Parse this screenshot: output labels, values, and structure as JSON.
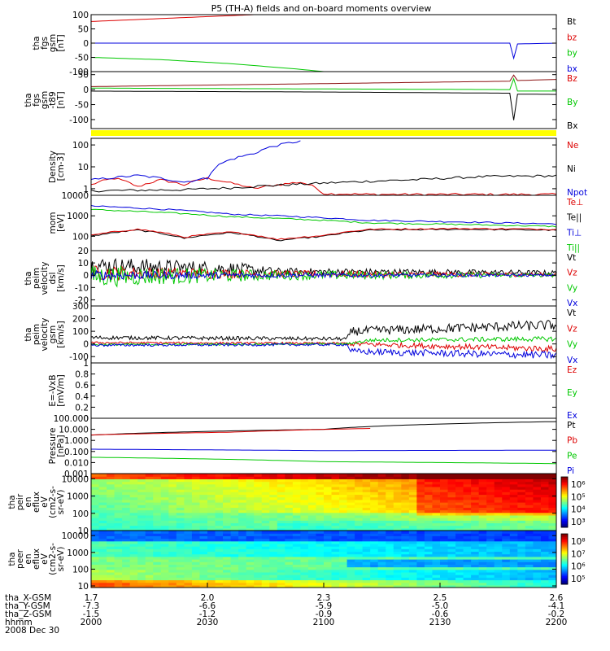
{
  "title": "P5 (TH-A) fields and on-board moments overview",
  "colors": {
    "black": "#000000",
    "red": "#dd0000",
    "green": "#00c800",
    "blue": "#0000dd",
    "dkred": "#8b1010",
    "yellow": "#ffff00"
  },
  "chart_data": [
    {
      "type": "line",
      "ylabel": [
        "tha",
        "fgs",
        "gsm",
        "[nT]"
      ],
      "ylim": [
        -100,
        100
      ],
      "yticks": [
        100,
        50,
        0,
        -50,
        -100
      ],
      "legend": [
        {
          "name": "Bt",
          "color": "#000000"
        },
        {
          "name": "bz",
          "color": "#dd0000"
        },
        {
          "name": "by",
          "color": "#00c800"
        },
        {
          "name": "bx",
          "color": "#0000dd"
        }
      ],
      "series": [
        {
          "name": "Bt",
          "color": "#000000",
          "x": [
            0,
            0.35,
            1
          ],
          "y": [
            100,
            100,
            100
          ]
        },
        {
          "name": "bz",
          "color": "#dd0000",
          "x": [
            0,
            0.35
          ],
          "y": [
            76,
            100
          ]
        },
        {
          "name": "by",
          "color": "#00c800",
          "x": [
            0,
            0.15,
            0.3,
            0.45,
            0.5
          ],
          "y": [
            -50,
            -58,
            -72,
            -92,
            -100
          ]
        },
        {
          "name": "bx",
          "color": "#0000dd",
          "x": [
            0,
            0.9,
            0.905,
            0.908,
            0.912,
            1
          ],
          "y": [
            0,
            0,
            -2,
            -58,
            -3,
            0
          ]
        }
      ]
    },
    {
      "type": "line",
      "ylabel": [
        "tha",
        "fgs",
        "gsm",
        "-t89",
        "[nT]"
      ],
      "ylim": [
        -130,
        60
      ],
      "yticks": [
        50,
        0,
        -50,
        -100
      ],
      "legend": [
        {
          "name": "Bz",
          "color": "#dd0000"
        },
        {
          "name": "By",
          "color": "#00c800"
        },
        {
          "name": "Bx",
          "color": "#000000"
        }
      ],
      "series": [
        {
          "name": "Bz",
          "color": "#8b1010",
          "x": [
            0,
            0.9,
            0.908,
            0.912,
            1
          ],
          "y": [
            10,
            28,
            50,
            30,
            34
          ]
        },
        {
          "name": "By",
          "color": "#00c800",
          "x": [
            0,
            0.9,
            0.908,
            0.912,
            1
          ],
          "y": [
            5,
            0,
            40,
            -5,
            -5
          ]
        },
        {
          "name": "Bx",
          "color": "#000000",
          "x": [
            0,
            0.5,
            0.9,
            0.908,
            0.912,
            1
          ],
          "y": [
            -5,
            -8,
            -12,
            -110,
            -15,
            -16
          ]
        }
      ]
    },
    {
      "type": "line",
      "log": true,
      "ylabel": [
        "Density",
        "[cm-3]"
      ],
      "ylim": [
        0.5,
        200
      ],
      "yticks": [
        100,
        10,
        1
      ],
      "legend": [
        {
          "name": "Ne",
          "color": "#dd0000"
        },
        {
          "name": "Ni",
          "color": "#000000"
        },
        {
          "name": "Npot",
          "color": "#0000dd"
        }
      ],
      "series": [
        {
          "name": "Ne",
          "color": "#dd0000",
          "x": [
            0,
            0.05,
            0.1,
            0.15,
            0.2,
            0.25,
            0.3,
            0.35,
            0.4,
            0.45,
            0.48,
            0.5,
            0.6,
            0.8,
            1
          ],
          "y": [
            1.5,
            3,
            1.2,
            2.5,
            1.5,
            3,
            1.8,
            1,
            1.5,
            2,
            1.2,
            0.6,
            0.55,
            0.55,
            0.55
          ]
        },
        {
          "name": "Ni",
          "color": "#000000",
          "x": [
            0,
            0.2,
            0.3,
            0.5,
            0.7,
            0.85,
            1
          ],
          "y": [
            0.8,
            0.9,
            1.1,
            1.8,
            2.6,
            3.6,
            3.9
          ]
        },
        {
          "name": "Npot",
          "color": "#0000dd",
          "x": [
            0,
            0.1,
            0.15,
            0.2,
            0.25,
            0.35,
            0.45
          ],
          "y": [
            2.5,
            4,
            3,
            2,
            3,
            40,
            150
          ]
        }
      ]
    },
    {
      "type": "line",
      "log": true,
      "ylabel": [
        "mom",
        "[eV]"
      ],
      "ylim": [
        20,
        10000
      ],
      "yticks": [
        10000,
        1000,
        100
      ],
      "legend": [
        {
          "name": "Te⊥",
          "color": "#dd0000"
        },
        {
          "name": "Te||",
          "color": "#000000"
        },
        {
          "name": "Ti⊥",
          "color": "#0000dd"
        },
        {
          "name": "Ti||",
          "color": "#00c800"
        }
      ],
      "series": [
        {
          "name": "Ti⊥",
          "color": "#0000dd",
          "x": [
            0,
            0.3,
            0.6,
            1
          ],
          "y": [
            3000,
            1200,
            600,
            400
          ]
        },
        {
          "name": "Ti||",
          "color": "#00c800",
          "x": [
            0,
            0.3,
            0.6,
            1
          ],
          "y": [
            2000,
            900,
            450,
            300
          ]
        },
        {
          "name": "Te||",
          "color": "#000000",
          "x": [
            0,
            0.1,
            0.2,
            0.3,
            0.4,
            0.5,
            0.6,
            0.8,
            1
          ],
          "y": [
            100,
            200,
            80,
            150,
            60,
            100,
            200,
            220,
            200
          ]
        },
        {
          "name": "Te⊥",
          "color": "#dd0000",
          "x": [
            0,
            0.1,
            0.2,
            0.3,
            0.4,
            0.5,
            0.6,
            0.8,
            1
          ],
          "y": [
            110,
            220,
            90,
            160,
            70,
            110,
            220,
            240,
            220
          ]
        }
      ]
    },
    {
      "type": "line",
      "noise": true,
      "ylabel": [
        "tha",
        "peim",
        "velocity",
        "dsl",
        "[km/s]"
      ],
      "ylim": [
        -25,
        20
      ],
      "yticks": [
        20,
        10,
        0,
        -10,
        -20
      ],
      "legend": [
        {
          "name": "Vt",
          "color": "#000000"
        },
        {
          "name": "Vz",
          "color": "#dd0000"
        },
        {
          "name": "Vy",
          "color": "#00c800"
        },
        {
          "name": "Vx",
          "color": "#0000dd"
        }
      ],
      "series": [
        {
          "name": "Vt",
          "color": "#000000",
          "x": [
            0,
            0.3,
            0.4,
            1
          ],
          "y": [
            8,
            5,
            3,
            2
          ],
          "amp": [
            7,
            6,
            3,
            2
          ]
        },
        {
          "name": "Vz",
          "color": "#dd0000",
          "x": [
            0,
            0.4,
            1
          ],
          "y": [
            2,
            1,
            0.5
          ],
          "amp": [
            6,
            3,
            1.5
          ]
        },
        {
          "name": "Vy",
          "color": "#00c800",
          "x": [
            0,
            0.4,
            1
          ],
          "y": [
            -1,
            0,
            0
          ],
          "amp": [
            9,
            4,
            1.5
          ]
        },
        {
          "name": "Vx",
          "color": "#0000dd",
          "x": [
            0,
            0.4,
            1
          ],
          "y": [
            0,
            0,
            0
          ],
          "amp": [
            4,
            2,
            1
          ]
        }
      ]
    },
    {
      "type": "line",
      "noise": true,
      "ylabel": [
        "tha",
        "peim",
        "velocity",
        "gsm",
        "[km/s]"
      ],
      "ylim": [
        -150,
        300
      ],
      "yticks": [
        300,
        200,
        100,
        0,
        -100
      ],
      "legend": [
        {
          "name": "Vt",
          "color": "#000000"
        },
        {
          "name": "Vz",
          "color": "#dd0000"
        },
        {
          "name": "Vy",
          "color": "#00c800"
        },
        {
          "name": "Vx",
          "color": "#0000dd"
        }
      ],
      "series": [
        {
          "name": "Vt",
          "color": "#000000",
          "x": [
            0,
            0.55,
            0.56,
            1
          ],
          "y": [
            50,
            40,
            100,
            150
          ],
          "amp": [
            15,
            15,
            35,
            40
          ]
        },
        {
          "name": "Vz",
          "color": "#dd0000",
          "x": [
            0,
            0.55,
            0.56,
            1
          ],
          "y": [
            10,
            5,
            0,
            -40
          ],
          "amp": [
            8,
            8,
            20,
            25
          ]
        },
        {
          "name": "Vy",
          "color": "#00c800",
          "x": [
            0,
            0.55,
            0.6,
            1
          ],
          "y": [
            -5,
            0,
            30,
            40
          ],
          "amp": [
            8,
            8,
            15,
            20
          ]
        },
        {
          "name": "Vx",
          "color": "#0000dd",
          "x": [
            0,
            0.55,
            0.56,
            1
          ],
          "y": [
            -10,
            -5,
            -60,
            -90
          ],
          "amp": [
            10,
            10,
            25,
            30
          ]
        }
      ]
    },
    {
      "type": "line",
      "ylabel": [
        "E=-VxB",
        "[mV/m]"
      ],
      "ylim": [
        0,
        1
      ],
      "yticks": [
        1.0,
        0.8,
        0.6,
        0.4,
        0.2,
        0.0
      ],
      "legend": [
        {
          "name": "Ez",
          "color": "#dd0000"
        },
        {
          "name": "Ey",
          "color": "#00c800"
        },
        {
          "name": "Ex",
          "color": "#0000dd"
        }
      ],
      "series": []
    },
    {
      "type": "line",
      "log": true,
      "ylabel": [
        "Pressure",
        "[nPa]"
      ],
      "ylim": [
        0.001,
        100
      ],
      "yticks": [
        100.0,
        10.0,
        1.0,
        0.1,
        0.01,
        0.001
      ],
      "ytick_labels": [
        "100.000",
        "10.000",
        "1.000",
        "0.100",
        "0.010",
        "0.001"
      ],
      "legend": [
        {
          "name": "Pt",
          "color": "#000000"
        },
        {
          "name": "Pb",
          "color": "#dd0000"
        },
        {
          "name": "Pe",
          "color": "#00c800"
        },
        {
          "name": "Pi",
          "color": "#0000dd"
        }
      ],
      "series": [
        {
          "name": "Pt",
          "color": "#000000",
          "x": [
            0,
            0.5,
            1
          ],
          "y": [
            3,
            10,
            50
          ]
        },
        {
          "name": "Pb",
          "color": "#dd0000",
          "x": [
            0,
            0.3,
            0.6
          ],
          "y": [
            3.1,
            5.5,
            12
          ]
        },
        {
          "name": "Pi",
          "color": "#0000dd",
          "x": [
            0,
            0.5,
            1
          ],
          "y": [
            0.16,
            0.12,
            0.13
          ]
        },
        {
          "name": "Pe",
          "color": "#00c800",
          "x": [
            0,
            0.5,
            1
          ],
          "y": [
            0.03,
            0.012,
            0.008
          ]
        }
      ]
    },
    {
      "type": "heatmap",
      "ylabel": [
        "tha",
        "peir",
        "en",
        "eflux",
        "eV",
        "(cm2-s-",
        "sr-eV)"
      ],
      "ylim": [
        10,
        20000
      ],
      "yticks": [
        10000,
        1000,
        100,
        10
      ],
      "colorbar": {
        "ticks": [
          "10⁶",
          "10⁵",
          "10⁴",
          "10³"
        ]
      },
      "pattern": "ion"
    },
    {
      "type": "heatmap",
      "ylabel": [
        "tha",
        "peer",
        "en",
        "eflux",
        "eV",
        "(cm2-s-",
        "sr-eV)"
      ],
      "ylim": [
        8,
        20000
      ],
      "yticks": [
        10000,
        1000,
        100,
        10
      ],
      "colorbar": {
        "ticks": [
          "10⁸",
          "10⁷",
          "10⁶",
          "10⁵"
        ]
      },
      "pattern": "electron"
    }
  ],
  "xaxis": {
    "rows": [
      {
        "label": "tha_X-GSM",
        "values": [
          "1.7",
          "2.0",
          "2.3",
          "2.5",
          "2.6"
        ]
      },
      {
        "label": "tha_Y-GSM",
        "values": [
          "-7.3",
          "-6.6",
          "-5.9",
          "-5.0",
          "-4.1"
        ]
      },
      {
        "label": "tha_Z-GSM",
        "values": [
          "-1.5",
          "-1.2",
          "-0.9",
          "-0.6",
          "-0.2"
        ]
      },
      {
        "label": "hhmm",
        "values": [
          "2000",
          "2030",
          "2100",
          "2130",
          "2200"
        ]
      }
    ],
    "date": "2008 Dec 30"
  }
}
